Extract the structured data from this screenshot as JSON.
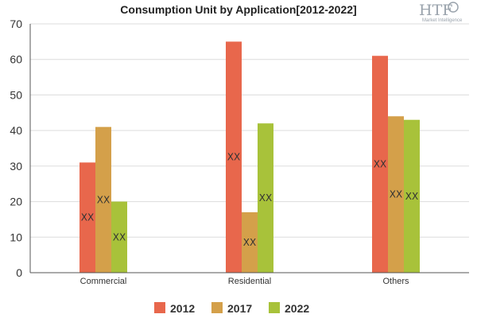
{
  "logo": {
    "text": "HTF",
    "subtitle": "Market Intelligence"
  },
  "chart_data": {
    "type": "bar",
    "title": "Consumption Unit by  Application[2012-2022]",
    "xlabel": "",
    "ylabel": "",
    "categories": [
      "Commercial",
      "Residential",
      "Others"
    ],
    "series": [
      {
        "name": "2012",
        "color": "#e8674c",
        "values": [
          31,
          65,
          61
        ],
        "data_labels": [
          "XX",
          "XX",
          "XX"
        ]
      },
      {
        "name": "2017",
        "color": "#d4a04a",
        "values": [
          41,
          17,
          44
        ],
        "data_labels": [
          "XX",
          "XX",
          "XX"
        ]
      },
      {
        "name": "2022",
        "color": "#a8c23a",
        "values": [
          20,
          42,
          43
        ],
        "data_labels": [
          "XX",
          "XX",
          "XX"
        ]
      }
    ],
    "ylim": [
      0,
      70
    ],
    "yticks": [
      0,
      10,
      20,
      30,
      40,
      50,
      60,
      70
    ],
    "grid": true,
    "legend_position": "bottom"
  }
}
